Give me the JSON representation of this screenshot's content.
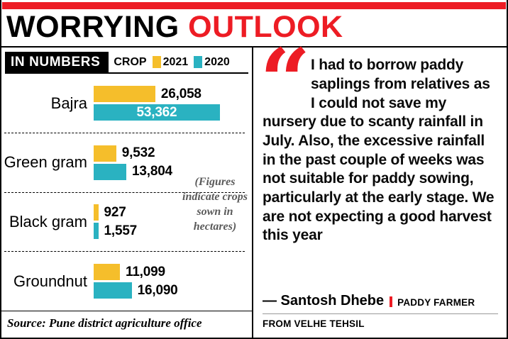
{
  "header": {
    "title_black": "WORRYING",
    "title_red": "OUTLOOK"
  },
  "colors": {
    "red": "#ED1C24",
    "yellow": "#F5BE2B",
    "teal": "#2AB2C1"
  },
  "chart_data": {
    "type": "bar",
    "orientation": "horizontal",
    "section_label": "IN NUMBERS",
    "legend_label": "CROP",
    "legend_position": "top",
    "unit": "hectares",
    "categories": [
      "Bajra",
      "Green gram",
      "Black gram",
      "Groundnut"
    ],
    "series": [
      {
        "name": "2021",
        "color": "#F5BE2B",
        "values": [
          26058,
          9532,
          927,
          11099
        ]
      },
      {
        "name": "2020",
        "color": "#2AB2C1",
        "values": [
          53362,
          13804,
          1557,
          16090
        ]
      }
    ],
    "value_labels": true,
    "note": "(Figures indicate crops sown in hectares)",
    "source": "Source: Pune district agriculture office"
  },
  "quote": {
    "mark_glyph": "“",
    "text": "I had to borrow paddy saplings from relatives as I could not save my nursery due to scanty rainfall in July. Also, the excessive rainfall in the past couple of weeks was not suitable for paddy sowing, particularly at the early stage. We are not expecting a good harvest this year",
    "attribution_name": "— Santosh Dhebe",
    "attribution_role": "PADDY FARMER",
    "attribution_location": "FROM VELHE TEHSIL"
  }
}
